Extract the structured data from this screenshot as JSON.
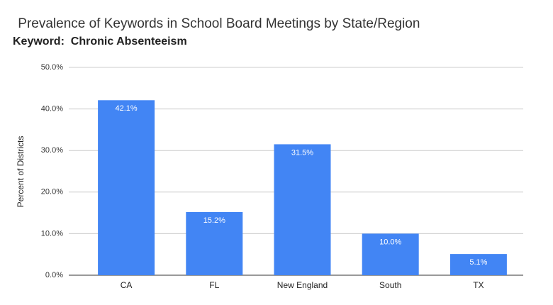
{
  "chart_data": {
    "type": "bar",
    "title": " Prevalence of Keywords in School Board Meetings by State/Region",
    "subtitle": "Keyword:  Chronic Absenteeism",
    "y_label": "Percent of Districts",
    "categories": [
      "CA",
      "FL",
      "New England",
      "South",
      "TX"
    ],
    "values": [
      42.1,
      15.2,
      31.5,
      10.0,
      5.1
    ],
    "value_labels": [
      "42.1%",
      "15.2%",
      "31.5%",
      "10.0%",
      "5.1%"
    ],
    "color": "#4285f4",
    "ylim": [
      0,
      50
    ],
    "yticks": [
      {
        "value": 0,
        "label": "0.0%"
      },
      {
        "value": 10,
        "label": "10.0%"
      },
      {
        "value": 20,
        "label": "20.0%"
      },
      {
        "value": 30,
        "label": "30.0%"
      },
      {
        "value": 40,
        "label": "40.0%"
      },
      {
        "value": 50,
        "label": "50.0%"
      }
    ],
    "grid": true
  }
}
